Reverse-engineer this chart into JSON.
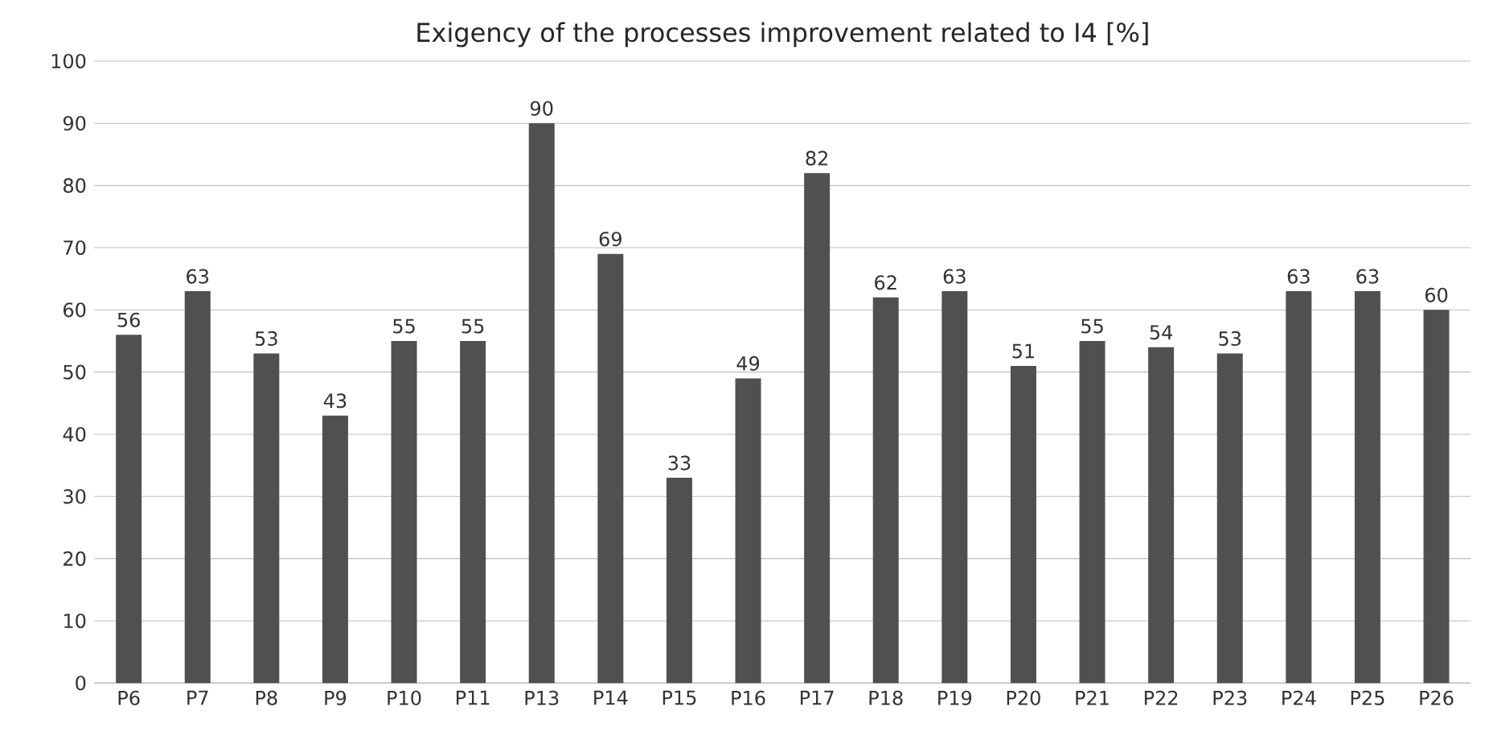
{
  "chart_data": {
    "type": "bar",
    "title": "Exigency of the processes improvement related to I4 [%]",
    "categories": [
      "P6",
      "P7",
      "P8",
      "P9",
      "P10",
      "P11",
      "P13",
      "P14",
      "P15",
      "P16",
      "P17",
      "P18",
      "P19",
      "P20",
      "P21",
      "P22",
      "P23",
      "P24",
      "P25",
      "P26"
    ],
    "values": [
      56,
      63,
      53,
      43,
      55,
      55,
      90,
      69,
      33,
      49,
      82,
      62,
      63,
      51,
      55,
      54,
      53,
      63,
      63,
      60
    ],
    "color": "#505050",
    "ylim": [
      0,
      100
    ],
    "yticks": [
      0,
      10,
      20,
      30,
      40,
      50,
      60,
      70,
      80,
      90,
      100
    ],
    "grid": "y",
    "data_labels": true
  }
}
